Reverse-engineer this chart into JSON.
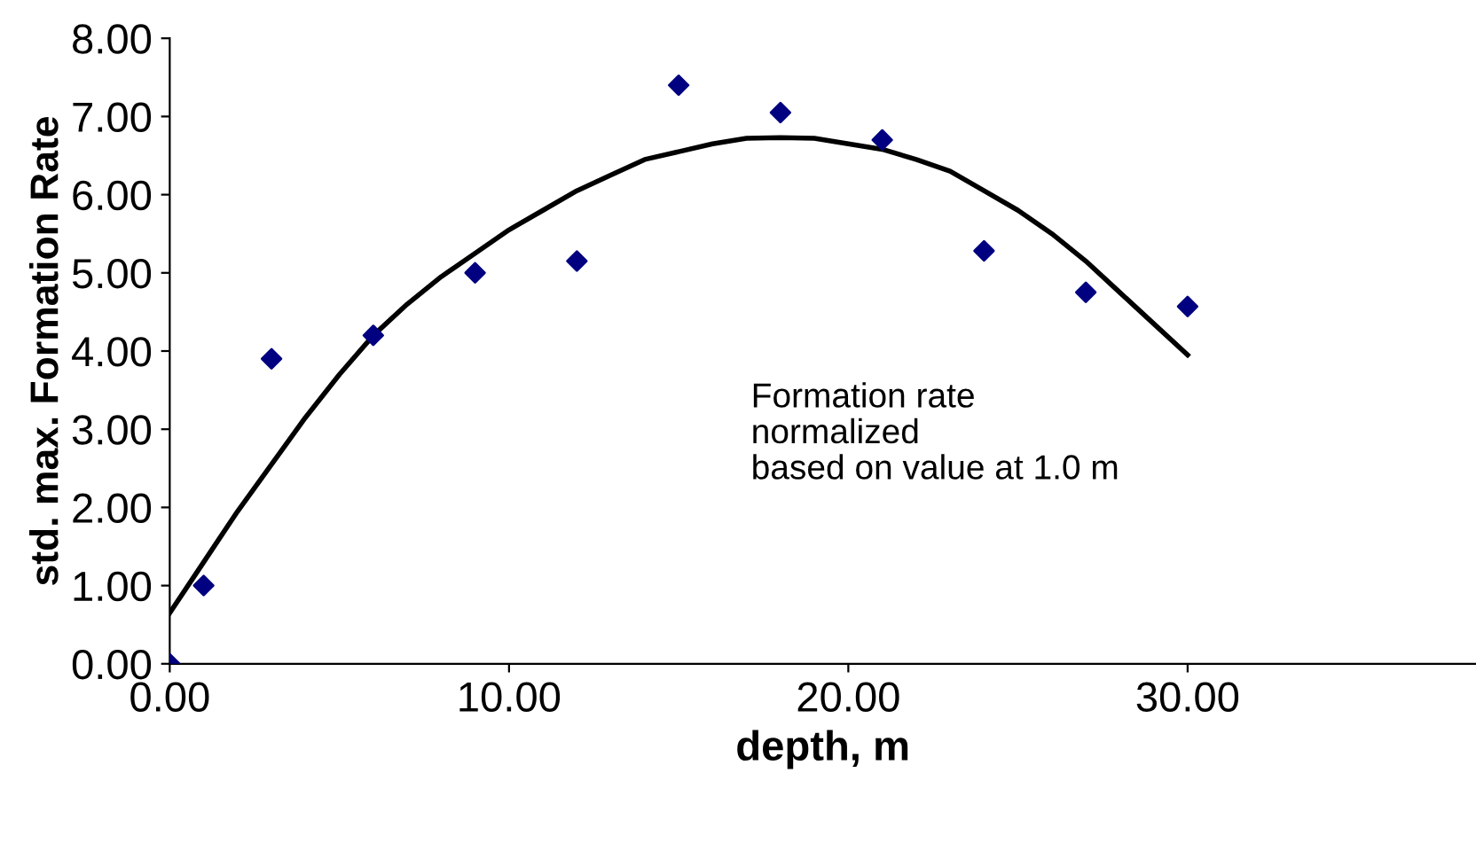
{
  "chart_data": {
    "type": "scatter",
    "xlabel": "depth, m",
    "ylabel": "std. max. Formation Rate",
    "xlim": [
      0,
      38.5
    ],
    "xticks": [
      {
        "value": 0,
        "label": "0.00"
      },
      {
        "value": 10,
        "label": "10.00"
      },
      {
        "value": 20,
        "label": "20.00"
      },
      {
        "value": 30,
        "label": "30.00"
      }
    ],
    "ylim": [
      0,
      8
    ],
    "yticks": [
      {
        "value": 0,
        "label": "0.00"
      },
      {
        "value": 1,
        "label": "1.00"
      },
      {
        "value": 2,
        "label": "2.00"
      },
      {
        "value": 3,
        "label": "3.00"
      },
      {
        "value": 4,
        "label": "4.00"
      },
      {
        "value": 5,
        "label": "5.00"
      },
      {
        "value": 6,
        "label": "6.00"
      },
      {
        "value": 7,
        "label": "7.00"
      },
      {
        "value": 8,
        "label": "8.00"
      }
    ],
    "grid": false,
    "legend": false,
    "annotations": [
      "Formation rate\nnormalized\nbased on value at 1.0 m"
    ],
    "series": [
      {
        "marker": "diamond",
        "color": "#000080",
        "x": [
          0,
          1,
          3,
          6,
          9,
          12,
          15,
          18,
          21,
          24,
          27,
          30
        ],
        "values": [
          0,
          1.0,
          3.9,
          4.2,
          5.0,
          5.15,
          7.4,
          7.05,
          6.7,
          5.28,
          4.75,
          4.57
        ]
      },
      {
        "type": "line",
        "marker": "none",
        "line_style": "solid",
        "color": "#000000",
        "x": [
          0,
          1,
          2,
          3,
          4,
          5,
          6,
          7,
          8,
          9,
          10,
          11,
          12,
          13,
          14,
          15,
          16,
          17,
          18,
          19,
          20,
          21,
          22,
          23,
          24,
          25,
          26,
          27,
          28,
          29,
          30
        ],
        "values": [
          0.65,
          1.3,
          1.95,
          2.55,
          3.15,
          3.7,
          4.2,
          4.6,
          4.95,
          5.25,
          5.55,
          5.8,
          6.05,
          6.25,
          6.45,
          6.55,
          6.65,
          6.72,
          6.73,
          6.72,
          6.65,
          6.58,
          6.45,
          6.3,
          6.05,
          5.8,
          5.5,
          5.15,
          4.75,
          4.35,
          3.95
        ]
      }
    ]
  }
}
